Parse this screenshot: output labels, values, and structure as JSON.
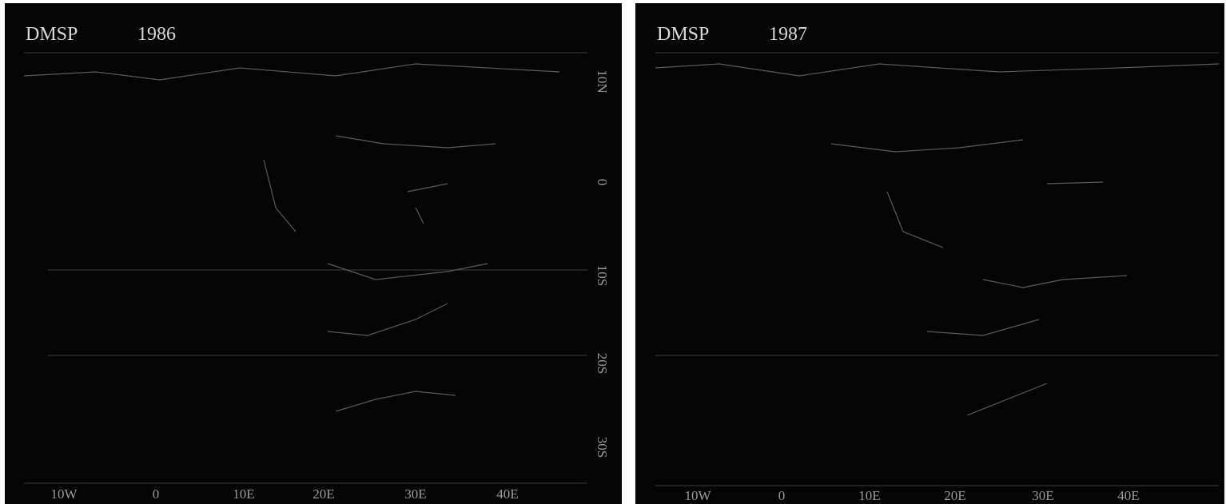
{
  "panels": [
    {
      "title": "DMSP",
      "year": "1986",
      "lon_labels": [
        "10W",
        "0",
        "10E",
        "20E",
        "30E",
        "40E"
      ],
      "lat_labels": [
        "10N",
        "0",
        "10S",
        "20S",
        "30S"
      ]
    },
    {
      "title": "DMSP",
      "year": "1987",
      "lon_labels": [
        "10W",
        "0",
        "10E",
        "20E",
        "30E",
        "40E"
      ]
    }
  ]
}
